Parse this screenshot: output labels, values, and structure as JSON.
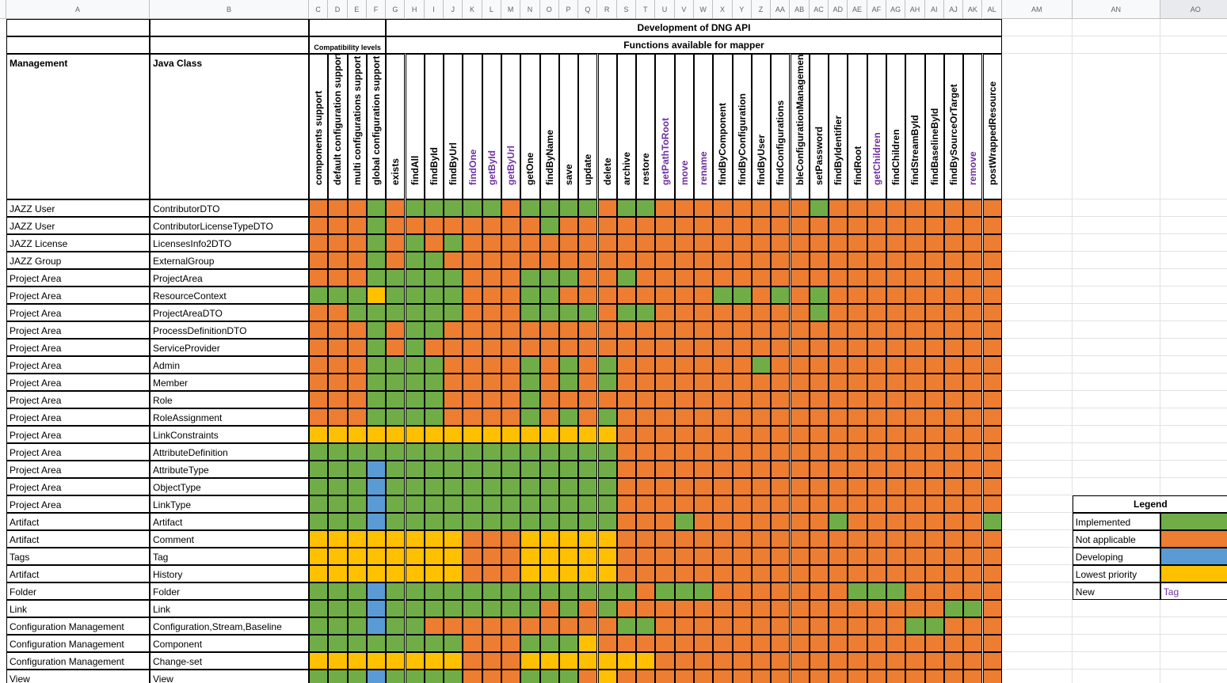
{
  "column_letters": [
    "A",
    "B",
    "C",
    "D",
    "E",
    "F",
    "G",
    "H",
    "I",
    "J",
    "K",
    "L",
    "M",
    "N",
    "O",
    "P",
    "Q",
    "R",
    "S",
    "T",
    "U",
    "V",
    "W",
    "X",
    "Y",
    "Z",
    "AA",
    "AB",
    "AC",
    "AD",
    "AE",
    "AF",
    "AG",
    "AH",
    "AI",
    "AJ",
    "AK",
    "AL",
    "AM",
    "AN",
    "AO"
  ],
  "sheet": {
    "title": "Development of DNG API",
    "compat_title": "Compatibility levels",
    "functions_title": "Functions available for mapper",
    "management_header": "Management",
    "class_header": "Java Class"
  },
  "functions": [
    {
      "name": "components support",
      "is_new": false
    },
    {
      "name": "default configuration support",
      "is_new": false
    },
    {
      "name": "multi configurations support",
      "is_new": false
    },
    {
      "name": "global configuration support",
      "is_new": false
    },
    {
      "name": "exists",
      "is_new": false
    },
    {
      "name": "findAll",
      "is_new": false
    },
    {
      "name": "findById",
      "is_new": false
    },
    {
      "name": "findByUrl",
      "is_new": false
    },
    {
      "name": "findOne",
      "is_new": true
    },
    {
      "name": "getById",
      "is_new": true
    },
    {
      "name": "getByUrl",
      "is_new": true
    },
    {
      "name": "getOne",
      "is_new": false
    },
    {
      "name": "findByName",
      "is_new": false
    },
    {
      "name": "save",
      "is_new": false
    },
    {
      "name": "update",
      "is_new": false
    },
    {
      "name": "delete",
      "is_new": false
    },
    {
      "name": "archive",
      "is_new": false
    },
    {
      "name": "restore",
      "is_new": false
    },
    {
      "name": "getPathToRoot",
      "is_new": true
    },
    {
      "name": "move",
      "is_new": true
    },
    {
      "name": "rename",
      "is_new": true
    },
    {
      "name": "findByComponent",
      "is_new": false
    },
    {
      "name": "findByConfiguration",
      "is_new": false
    },
    {
      "name": "findByUser",
      "is_new": false
    },
    {
      "name": "findConfigurations",
      "is_new": false
    },
    {
      "name": "bleConfigurationManagement",
      "is_new": false
    },
    {
      "name": "setPassword",
      "is_new": false
    },
    {
      "name": "findByIdentifier",
      "is_new": false
    },
    {
      "name": "findRoot",
      "is_new": false
    },
    {
      "name": "getChildren",
      "is_new": true
    },
    {
      "name": "findChildren",
      "is_new": false
    },
    {
      "name": "findStreamById",
      "is_new": false
    },
    {
      "name": "findBaselineById",
      "is_new": false
    },
    {
      "name": "findBySourceOrTarget",
      "is_new": false
    },
    {
      "name": "remove",
      "is_new": true
    },
    {
      "name": "postWrappedResource",
      "is_new": false
    }
  ],
  "rows": [
    {
      "management": "JAZZ User",
      "class": "ContributorDTO",
      "cells": "NNNINIIIIINIIIINIINNNNNNNNINNNNNNNNN"
    },
    {
      "management": "JAZZ User",
      "class": "ContributorLicenseTypeDTO",
      "cells": "NNNINNNNNNNNINNNNNNNNNNNNNNNNNNNNNNN"
    },
    {
      "management": "JAZZ License",
      "class": "LicensesInfo2DTO",
      "cells": "NNNINININNNNNNNNNNNNNNNNNNNNNNNNNNNN"
    },
    {
      "management": "JAZZ Group",
      "class": "ExternalGroup",
      "cells": "NNNINIINNNNNNNNNNNNNNNNNNNNNNNNNNNNN"
    },
    {
      "management": "Project Area",
      "class": "ProjectArea",
      "cells": "NNNIIIIINNNIIINNINNNNNNNNNNNNNNNNNNN"
    },
    {
      "management": "Project Area",
      "class": "ResourceContext",
      "cells": "IIILIIIINNNIINNNNNNNNIINININNNNNNNNN"
    },
    {
      "management": "Project Area",
      "class": "ProjectAreaDTO",
      "cells": "NNIIIIIINNNIIIINIINNNNNNNNINNNNNNNNN"
    },
    {
      "management": "Project Area",
      "class": "ProcessDefinitionDTO",
      "cells": "NNNINIINNNNNNNNNNNNNNNNNNNNNNNNNNNNN"
    },
    {
      "management": "Project Area",
      "class": "ServiceProvider",
      "cells": "NNNININNNNNNNNNNNNNNNNNNNNNNNNNNNNNN"
    },
    {
      "management": "Project Area",
      "class": "Admin",
      "cells": "NNNIIIINNNNINININNNNNNNINNNNNNNNNNNN"
    },
    {
      "management": "Project Area",
      "class": "Member",
      "cells": "NNNIIIINNNNINININNNNNNNNNNNNNNNNNNNN"
    },
    {
      "management": "Project Area",
      "class": "Role",
      "cells": "NNNIIIINNNNINNNNNNNNNNNNNNNNNNNNNNNN"
    },
    {
      "management": "Project Area",
      "class": "RoleAssignment",
      "cells": "NNNIIIINNNNINININNNNNNNNNNNNNNNNNNNN"
    },
    {
      "management": "Project Area",
      "class": "LinkConstraints",
      "cells": "LLLLLLLLLLLLLLLLNNNNNNNNNNNNNNNNNNNN"
    },
    {
      "management": "Project Area",
      "class": "AttributeDefinition",
      "cells": "IIIIIIIIIIIIIIIINNNNNNNNNNNNNNNNNNNN"
    },
    {
      "management": "Project Area",
      "class": "AttributeType",
      "cells": "IIIDIIIIIIIIIIIINNNNNNNNNNNNNNNNNNNN"
    },
    {
      "management": "Project Area",
      "class": "ObjectType",
      "cells": "IIIDIIIIIIIIIIIINNNNNNNNNNNNNNNNNNNN"
    },
    {
      "management": "Project Area",
      "class": "LinkType",
      "cells": "IIIDIIIIIIIIIIIINNNNNNNNNNNNNNNNNNNN"
    },
    {
      "management": "Artifact",
      "class": "Artifact",
      "cells": "IIIDIIIIIIIIIIIINNNINNNNNNNINNNNNNNI"
    },
    {
      "management": "Artifact",
      "class": "Comment",
      "cells": "LLLLLLLLNNNLLLLLNNNNNNNNNNNNNNNNNNNN"
    },
    {
      "management": "Tags",
      "class": "Tag",
      "cells": "LLLLLLLLNNNLLLLLNNNNNNNNNNNNNNNNNNNN"
    },
    {
      "management": "Artifact",
      "class": "History",
      "cells": "LLLLLLLLNNNLLLLLNNNNNNNNNNNNNNNNNNNN"
    },
    {
      "management": "Folder",
      "class": "Folder",
      "cells": "IIIDIIIIIIIIIIIIINIIINNNNNNNIIINNNNN"
    },
    {
      "management": "Link",
      "class": "Link",
      "cells": "IIIDIIIIIIIINININNNNNNNNNNNNNNNNNIIN"
    },
    {
      "management": "Configuration Management",
      "class": "Configuration,Stream,Baseline",
      "cells": "IIIDIINNNNNNNNNNIINNNNNNNNNNNNNIINNN"
    },
    {
      "management": "Configuration Management",
      "class": "Component",
      "cells": "IIIIIIIINNNIIILNNNNNNNNNNNNNNNNNNNNN"
    },
    {
      "management": "Configuration Management",
      "class": "Change-set",
      "cells": "LLLLLLLLNNNLLLLLLLNNNNNNNNNNNNNNNNNN"
    },
    {
      "management": "View",
      "class": "View",
      "cells": "IIIDIIIINNNIIINLNNNNNNNNNNNNNNNNNNNN"
    }
  ],
  "legend": {
    "title": "Legend",
    "items": [
      {
        "key": "I",
        "label": "Implemented",
        "color": "#70ad47"
      },
      {
        "key": "N",
        "label": "Not applicable",
        "color": "#ed7d31"
      },
      {
        "key": "D",
        "label": "Developing",
        "color": "#5b9bd5"
      },
      {
        "key": "L",
        "label": "Lowest priority",
        "color": "#ffc000"
      },
      {
        "key": "new",
        "label": "New",
        "sample": "Tag",
        "color": "#7030a0"
      }
    ]
  },
  "colors": {
    "grid_border": "#000000",
    "header_bg": "#f8f9fa",
    "new_text": "#7030a0"
  }
}
